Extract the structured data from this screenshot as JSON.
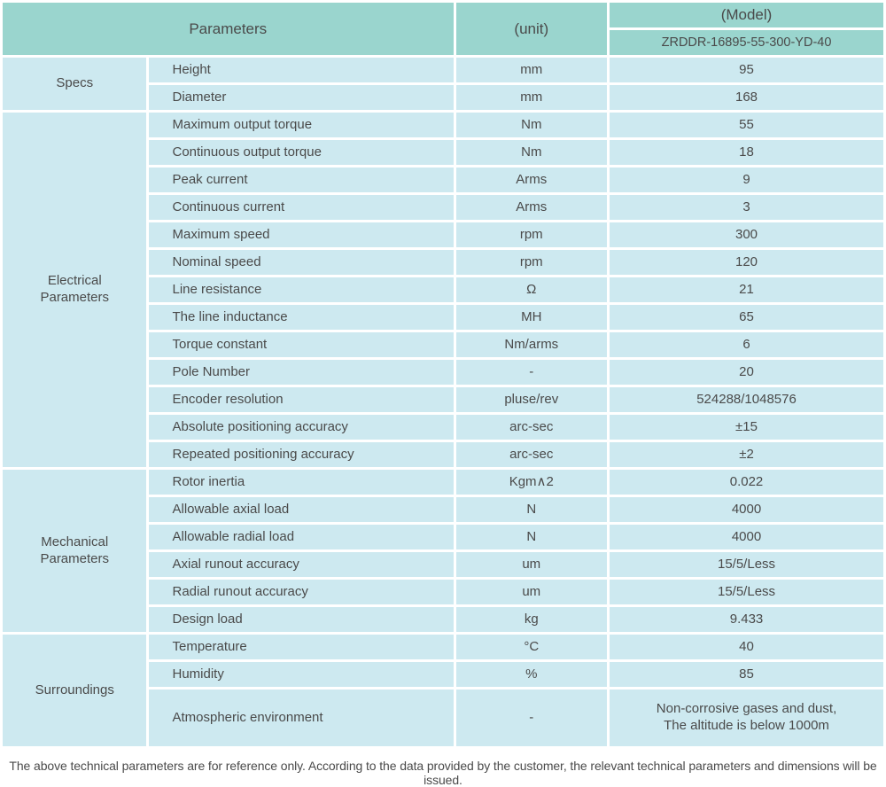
{
  "colors": {
    "header_bg": "#9ad5ce",
    "cell_bg": "#cde9f0",
    "text": "#4a4a4a",
    "page_bg": "#ffffff"
  },
  "table": {
    "header": {
      "parameters_label": "Parameters",
      "unit_label": "(unit)",
      "model_label": "(Model)",
      "model_value": "ZRDDR-16895-55-300-YD-40"
    },
    "sections": [
      {
        "category": "Specs",
        "rows": [
          {
            "param": "Height",
            "unit": "mm",
            "value": "95"
          },
          {
            "param": "Diameter",
            "unit": "mm",
            "value": "168"
          }
        ]
      },
      {
        "category": "Electrical\nParameters",
        "rows": [
          {
            "param": "Maximum output torque",
            "unit": "Nm",
            "value": "55"
          },
          {
            "param": "Continuous output torque",
            "unit": "Nm",
            "value": "18"
          },
          {
            "param": "Peak current",
            "unit": "Arms",
            "value": "9"
          },
          {
            "param": "Continuous current",
            "unit": "Arms",
            "value": "3"
          },
          {
            "param": "Maximum speed",
            "unit": "rpm",
            "value": "300"
          },
          {
            "param": "Nominal speed",
            "unit": "rpm",
            "value": "120"
          },
          {
            "param": "Line resistance",
            "unit": "Ω",
            "value": "21"
          },
          {
            "param": "The line inductance",
            "unit": "MH",
            "value": "65"
          },
          {
            "param": "Torque constant",
            "unit": "Nm/arms",
            "value": "6"
          },
          {
            "param": "Pole Number",
            "unit": "-",
            "value": "20"
          },
          {
            "param": "Encoder resolution",
            "unit": "pluse/rev",
            "value": "524288/1048576"
          },
          {
            "param": "Absolute positioning accuracy",
            "unit": "arc-sec",
            "value": "±15"
          },
          {
            "param": "Repeated positioning accuracy",
            "unit": "arc-sec",
            "value": "±2"
          }
        ]
      },
      {
        "category": "Mechanical\nParameters",
        "rows": [
          {
            "param": "Rotor inertia",
            "unit": "Kgm∧2",
            "value": "0.022"
          },
          {
            "param": "Allowable axial load",
            "unit": "N",
            "value": "4000"
          },
          {
            "param": "Allowable radial load",
            "unit": "N",
            "value": "4000"
          },
          {
            "param": "Axial runout accuracy",
            "unit": "um",
            "value": "15/5/Less"
          },
          {
            "param": "Radial runout accuracy",
            "unit": "um",
            "value": "15/5/Less"
          },
          {
            "param": "Design load",
            "unit": "kg",
            "value": "9.433"
          }
        ]
      },
      {
        "category": "Surroundings",
        "rows": [
          {
            "param": "Temperature",
            "unit": "°C",
            "value": "40"
          },
          {
            "param": "Humidity",
            "unit": "%",
            "value": "85"
          },
          {
            "param": "Atmospheric environment",
            "unit": "-",
            "value": "Non-corrosive gases and dust,\nThe altitude is below 1000m",
            "tall": true
          }
        ]
      }
    ]
  },
  "footer": {
    "note": "The above technical parameters are for reference only. According to the data provided by the customer, the relevant technical parameters and dimensions will be issued."
  }
}
